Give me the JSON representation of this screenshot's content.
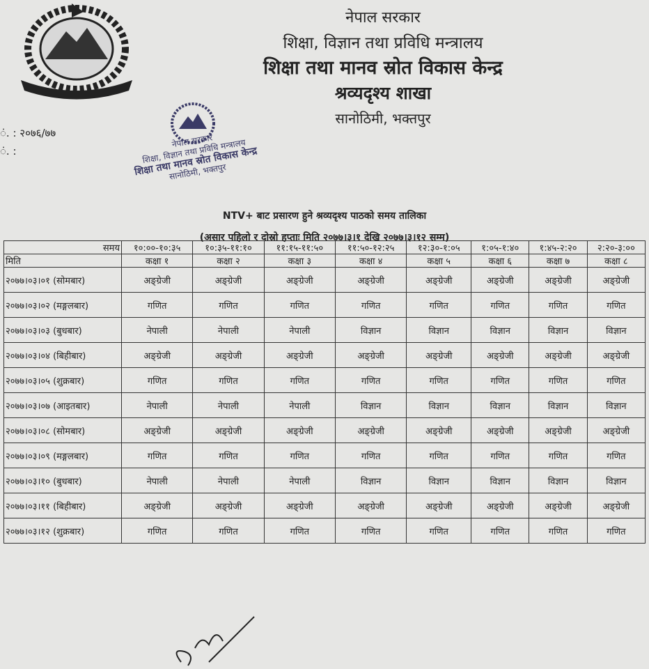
{
  "header": {
    "lines": [
      "नेपाल सरकार",
      "शिक्षा, विज्ञान तथा प्रविधि मन्त्रालय",
      "शिक्षा तथा मानव स्रोत विकास केन्द्र",
      "श्रव्यदृश्य शाखा",
      "सानोठिमी, भक्तपुर"
    ]
  },
  "reference": {
    "lines": [
      "ं. : २०७६/७७",
      "ं. :"
    ]
  },
  "stamp": {
    "lines": [
      "नेपाल सरकार",
      "शिक्षा, विज्ञान तथा प्रविधि मन्त्रालय",
      "शिक्षा तथा मानव स्रोत विकास केन्द्र",
      "सानोठिमी, भक्तपुर"
    ]
  },
  "title": "NTV+ बाट प्रसारण हुने श्रव्यदृश्य पाठको समय तालिका",
  "subtitle": "(असार पहिलो र दोस्रो हप्ताः मिति २०७७।३।१ देखि २०७७।३।१२ सम्म)",
  "table": {
    "time_header": "समय",
    "times": [
      "१०:००-१०:३५",
      "१०:३५-११:१०",
      "११:१५-११:५०",
      "११:५०-१२:२५",
      "१२:३०-१:०५",
      "१:०५-१:४०",
      "१:४५-२:२०",
      "२:२०-३:००"
    ],
    "date_header": "मिति",
    "classes": [
      "कक्षा १",
      "कक्षा २",
      "कक्षा ३",
      "कक्षा ४",
      "कक्षा ५",
      "कक्षा ६",
      "कक्षा ७",
      "कक्षा ८"
    ],
    "rows": [
      [
        "२०७७।०३।०१ (सोमबार)",
        "अङ्ग्रेजी",
        "अङ्ग्रेजी",
        "अङ्ग्रेजी",
        "अङ्ग्रेजी",
        "अङ्ग्रेजी",
        "अङ्ग्रेजी",
        "अङ्ग्रेजी",
        "अङ्ग्रेजी"
      ],
      [
        "२०७७।०३।०२ (मङ्गलबार)",
        "गणित",
        "गणित",
        "गणित",
        "गणित",
        "गणित",
        "गणित",
        "गणित",
        "गणित"
      ],
      [
        "२०७७।०३।०३ (बुधबार)",
        "नेपाली",
        "नेपाली",
        "नेपाली",
        "विज्ञान",
        "विज्ञान",
        "विज्ञान",
        "विज्ञान",
        "विज्ञान"
      ],
      [
        "२०७७।०३।०४ (बिहीबार)",
        "अङ्ग्रेजी",
        "अङ्ग्रेजी",
        "अङ्ग्रेजी",
        "अङ्ग्रेजी",
        "अङ्ग्रेजी",
        "अङ्ग्रेजी",
        "अङ्ग्रेजी",
        "अङ्ग्रेजी"
      ],
      [
        "२०७७।०३।०५ (शुक्रबार)",
        "गणित",
        "गणित",
        "गणित",
        "गणित",
        "गणित",
        "गणित",
        "गणित",
        "गणित"
      ],
      [
        "२०७७।०३।०७ (आइतबार)",
        "नेपाली",
        "नेपाली",
        "नेपाली",
        "विज्ञान",
        "विज्ञान",
        "विज्ञान",
        "विज्ञान",
        "विज्ञान"
      ],
      [
        "२०७७।०३।०८ (सोमबार)",
        "अङ्ग्रेजी",
        "अङ्ग्रेजी",
        "अङ्ग्रेजी",
        "अङ्ग्रेजी",
        "अङ्ग्रेजी",
        "अङ्ग्रेजी",
        "अङ्ग्रेजी",
        "अङ्ग्रेजी"
      ],
      [
        "२०७७।०३।०९ (मङ्गलबार)",
        "गणित",
        "गणित",
        "गणित",
        "गणित",
        "गणित",
        "गणित",
        "गणित",
        "गणित"
      ],
      [
        "२०७७।०३।१० (बुधबार)",
        "नेपाली",
        "नेपाली",
        "नेपाली",
        "विज्ञान",
        "विज्ञान",
        "विज्ञान",
        "विज्ञान",
        "विज्ञान"
      ],
      [
        "२०७७।०३।११ (बिहीबार)",
        "अङ्ग्रेजी",
        "अङ्ग्रेजी",
        "अङ्ग्रेजी",
        "अङ्ग्रेजी",
        "अङ्ग्रेजी",
        "अङ्ग्रेजी",
        "अङ्ग्रेजी",
        "अङ्ग्रेजी"
      ],
      [
        "२०७७।०३।१२ (शुक्रबार)",
        "गणित",
        "गणित",
        "गणित",
        "गणित",
        "गणित",
        "गणित",
        "गणित",
        "गणित"
      ]
    ]
  }
}
